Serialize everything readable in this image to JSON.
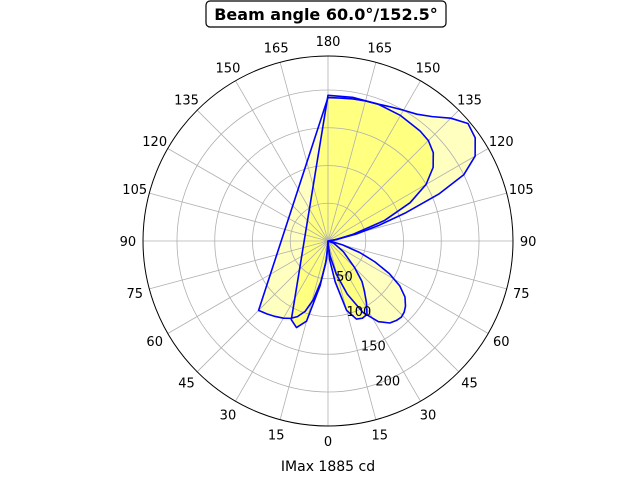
{
  "chart_data": {
    "type": "polar-area",
    "title": "Beam angle 60.0°/152.5°",
    "xlabel": "IMax 1885 cd",
    "theta_tick_labels_left": [
      "0",
      "15",
      "30",
      "45",
      "60",
      "75",
      "90",
      "105",
      "120",
      "135",
      "150",
      "165",
      "180"
    ],
    "theta_tick_labels_right": [
      "0",
      "15",
      "30",
      "45",
      "60",
      "75",
      "90",
      "105",
      "120",
      "135",
      "150",
      "165",
      "180"
    ],
    "theta_zero": "bottom",
    "radial_tick_labels": [
      "50",
      "100",
      "150",
      "200"
    ],
    "radial_ticks": [
      50,
      100,
      150,
      200
    ],
    "rlim": [
      0,
      245
    ],
    "grid": true,
    "colors": {
      "outline": "#0000ff",
      "outer_fill": "#ffffbf",
      "inner_fill": "#ffff80",
      "grid": "#b0b0b0"
    },
    "series": [
      {
        "role": "outer-curve",
        "points": [
          [
            -45,
            130
          ],
          [
            -40,
            126
          ],
          [
            -35,
            122
          ],
          [
            -30,
            118
          ],
          [
            -26,
            114
          ],
          [
            -22,
            108
          ],
          [
            -18,
            98
          ],
          [
            -14,
            80
          ],
          [
            -10,
            55
          ],
          [
            -6,
            30
          ],
          [
            -2,
            10
          ],
          [
            0,
            0
          ],
          [
            2,
            5
          ],
          [
            8,
            20
          ],
          [
            14,
            45
          ],
          [
            20,
            75
          ],
          [
            26,
            105
          ],
          [
            32,
            126
          ],
          [
            37,
            136
          ],
          [
            41,
            139
          ],
          [
            44,
            140
          ],
          [
            47,
            138
          ],
          [
            50,
            134
          ],
          [
            54,
            126
          ],
          [
            58,
            112
          ],
          [
            62,
            92
          ],
          [
            66,
            68
          ],
          [
            70,
            45
          ],
          [
            75,
            20
          ],
          [
            80,
            5
          ],
          [
            90,
            0
          ],
          [
            100,
            10
          ],
          [
            104,
            40
          ],
          [
            107,
            70
          ],
          [
            110,
            110
          ],
          [
            113,
            160
          ],
          [
            116,
            200
          ],
          [
            120,
            225
          ],
          [
            125,
            238
          ],
          [
            130,
            242
          ],
          [
            135,
            230
          ],
          [
            140,
            215
          ],
          [
            145,
            205
          ],
          [
            150,
            200
          ],
          [
            155,
            196
          ],
          [
            160,
            193
          ],
          [
            165,
            192
          ],
          [
            170,
            191
          ],
          [
            175,
            190
          ],
          [
            180,
            190
          ]
        ]
      },
      {
        "role": "inner-curve",
        "points": [
          [
            -25,
            115
          ],
          [
            -20,
            122
          ],
          [
            -15,
            110
          ],
          [
            -10,
            60
          ],
          [
            -5,
            25
          ],
          [
            0,
            0
          ],
          [
            5,
            25
          ],
          [
            10,
            55
          ],
          [
            15,
            95
          ],
          [
            20,
            110
          ],
          [
            24,
            112
          ],
          [
            28,
            110
          ],
          [
            32,
            96
          ],
          [
            36,
            82
          ],
          [
            40,
            70
          ],
          [
            45,
            50
          ],
          [
            55,
            25
          ],
          [
            70,
            8
          ],
          [
            90,
            0
          ],
          [
            100,
            12
          ],
          [
            105,
            35
          ],
          [
            110,
            80
          ],
          [
            115,
            120
          ],
          [
            120,
            150
          ],
          [
            125,
            170
          ],
          [
            130,
            182
          ],
          [
            135,
            188
          ],
          [
            140,
            190
          ],
          [
            150,
            192
          ],
          [
            160,
            193
          ],
          [
            170,
            193
          ],
          [
            180,
            193
          ]
        ]
      }
    ]
  }
}
